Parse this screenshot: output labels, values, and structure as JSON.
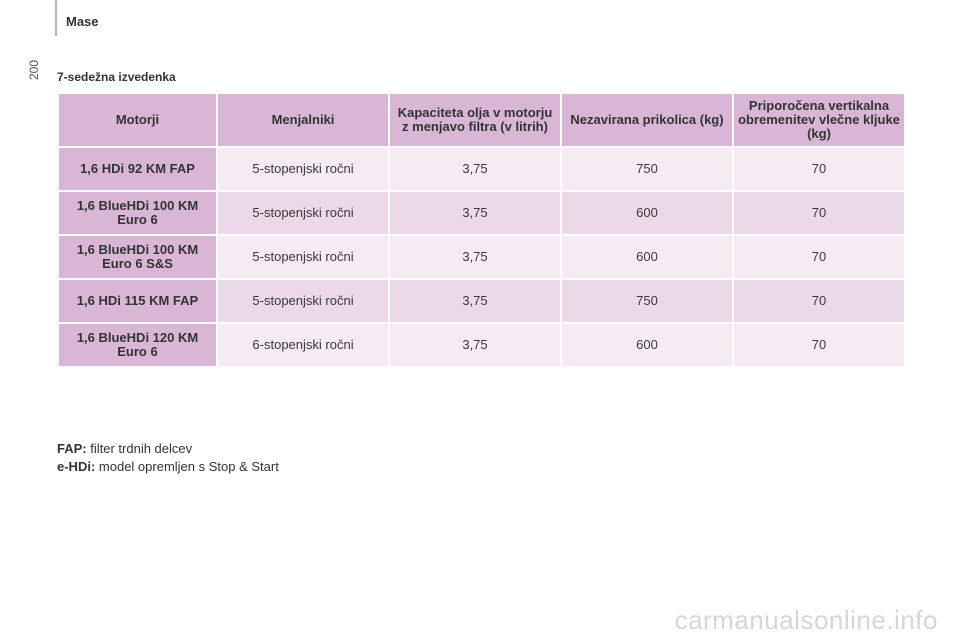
{
  "header": {
    "title": "Mase"
  },
  "page_number": "200",
  "section_title": "7-sedežna izvedenka",
  "table": {
    "columns": [
      "Motorji",
      "Menjalniki",
      "Kapaciteta olja v motorju z menjavo filtra (v litrih)",
      "Nezavirana prikolica (kg)",
      "Priporočena vertikalna obremenitev vlečne kljuke (kg)"
    ],
    "rows": [
      [
        "1,6 HDi 92 KM FAP",
        "5-stopenjski ročni",
        "3,75",
        "750",
        "70"
      ],
      [
        "1,6 BlueHDi 100 KM Euro 6",
        "5-stopenjski ročni",
        "3,75",
        "600",
        "70"
      ],
      [
        "1,6 BlueHDi 100 KM Euro 6 S&S",
        "5-stopenjski ročni",
        "3,75",
        "600",
        "70"
      ],
      [
        "1,6 HDi 115 KM FAP",
        "5-stopenjski ročni",
        "3,75",
        "750",
        "70"
      ],
      [
        "1,6 BlueHDi 120 KM Euro 6",
        "6-stopenjski ročni",
        "3,75",
        "600",
        "70"
      ]
    ]
  },
  "notes": [
    {
      "term": "FAP:",
      "text": "filter trdnih delcev"
    },
    {
      "term": "e-HDi:",
      "text": "model opremljen s Stop & Start"
    }
  ],
  "watermark": "carmanualsonline.info"
}
